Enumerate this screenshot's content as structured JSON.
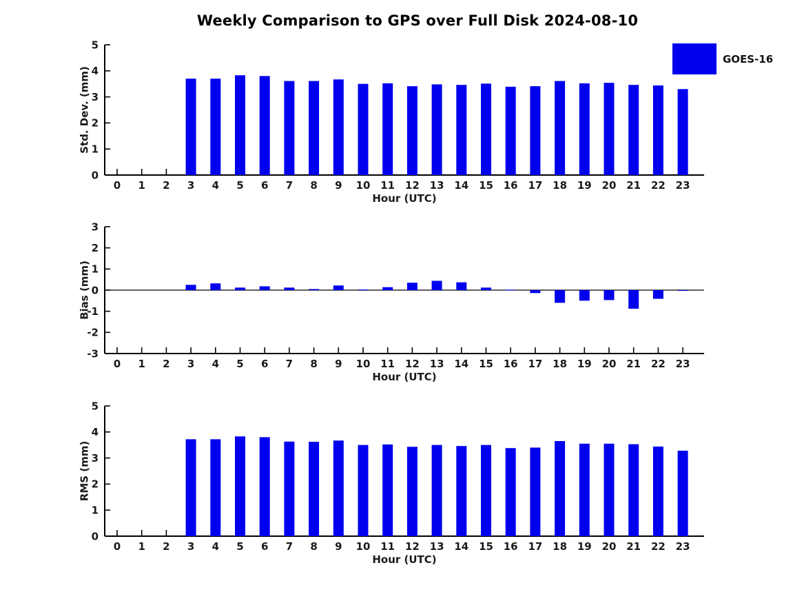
{
  "chart_data": [
    {
      "type": "bar",
      "name": "std-dev",
      "title": "Weekly Comparison to GPS over Full Disk 2024-08-10",
      "xlabel": "Hour (UTC)",
      "ylabel": "Std. Dev. (mm)",
      "ylim": [
        0,
        5
      ],
      "yticks": [
        0,
        1,
        2,
        3,
        4,
        5
      ],
      "categories": [
        0,
        1,
        2,
        3,
        4,
        5,
        6,
        7,
        8,
        9,
        10,
        11,
        12,
        13,
        14,
        15,
        16,
        17,
        18,
        19,
        20,
        21,
        22,
        23
      ],
      "legend": {
        "label": "GOES-16",
        "position": "top-right"
      },
      "series": [
        {
          "name": "GOES-16",
          "color": "#0000EE",
          "values": [
            null,
            null,
            null,
            3.7,
            3.7,
            3.83,
            3.8,
            3.61,
            3.61,
            3.67,
            3.5,
            3.52,
            3.41,
            3.48,
            3.46,
            3.51,
            3.39,
            3.41,
            3.61,
            3.52,
            3.54,
            3.46,
            3.44,
            3.3
          ]
        }
      ]
    },
    {
      "type": "bar",
      "name": "bias",
      "xlabel": "Hour (UTC)",
      "ylabel": "Bias (mm)",
      "ylim": [
        -3,
        3
      ],
      "yticks": [
        -3,
        -2,
        -1,
        0,
        1,
        2,
        3
      ],
      "zero_line": true,
      "categories": [
        0,
        1,
        2,
        3,
        4,
        5,
        6,
        7,
        8,
        9,
        10,
        11,
        12,
        13,
        14,
        15,
        16,
        17,
        18,
        19,
        20,
        21,
        22,
        23
      ],
      "series": [
        {
          "name": "GOES-16",
          "color": "#0000EE",
          "values": [
            null,
            null,
            null,
            0.25,
            0.32,
            0.12,
            0.18,
            0.12,
            0.05,
            0.22,
            0.03,
            0.14,
            0.35,
            0.44,
            0.37,
            0.12,
            0.02,
            -0.14,
            -0.6,
            -0.5,
            -0.47,
            -0.88,
            -0.41,
            -0.03
          ]
        }
      ]
    },
    {
      "type": "bar",
      "name": "rms",
      "xlabel": "Hour (UTC)",
      "ylabel": "RMS (mm)",
      "ylim": [
        0,
        5
      ],
      "yticks": [
        0,
        1,
        2,
        3,
        4,
        5
      ],
      "categories": [
        0,
        1,
        2,
        3,
        4,
        5,
        6,
        7,
        8,
        9,
        10,
        11,
        12,
        13,
        14,
        15,
        16,
        17,
        18,
        19,
        20,
        21,
        22,
        23
      ],
      "series": [
        {
          "name": "GOES-16",
          "color": "#0000EE",
          "values": [
            null,
            null,
            null,
            3.72,
            3.72,
            3.83,
            3.8,
            3.63,
            3.62,
            3.67,
            3.5,
            3.52,
            3.43,
            3.5,
            3.46,
            3.5,
            3.38,
            3.4,
            3.65,
            3.55,
            3.55,
            3.53,
            3.44,
            3.28
          ]
        }
      ]
    }
  ]
}
